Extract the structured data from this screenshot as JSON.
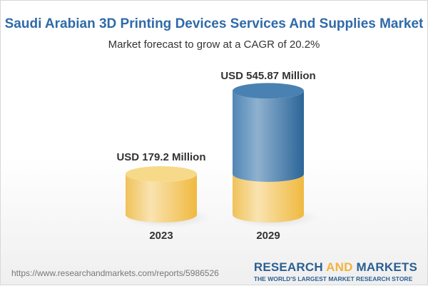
{
  "title": "Saudi Arabian 3D Printing Devices Services And Supplies Market",
  "subtitle": "Market forecast to grow at a CAGR of 20.2%",
  "chart_data": {
    "type": "bar",
    "style": "3d-cylinder",
    "categories": [
      "2023",
      "2029"
    ],
    "values": [
      179.2,
      545.87
    ],
    "data_labels": [
      "USD 179.2 Million",
      "USD 545.87 Million"
    ],
    "unit": "USD Million",
    "colors": {
      "base": "#f2c75c",
      "growth": "#3f78aa"
    }
  },
  "footer": {
    "url": "https://www.researchandmarkets.com/reports/5986526",
    "logo_research": "RESEARCH",
    "logo_and": "AND",
    "logo_markets": "MARKETS",
    "tagline": "THE WORLD'S LARGEST MARKET RESEARCH STORE"
  }
}
